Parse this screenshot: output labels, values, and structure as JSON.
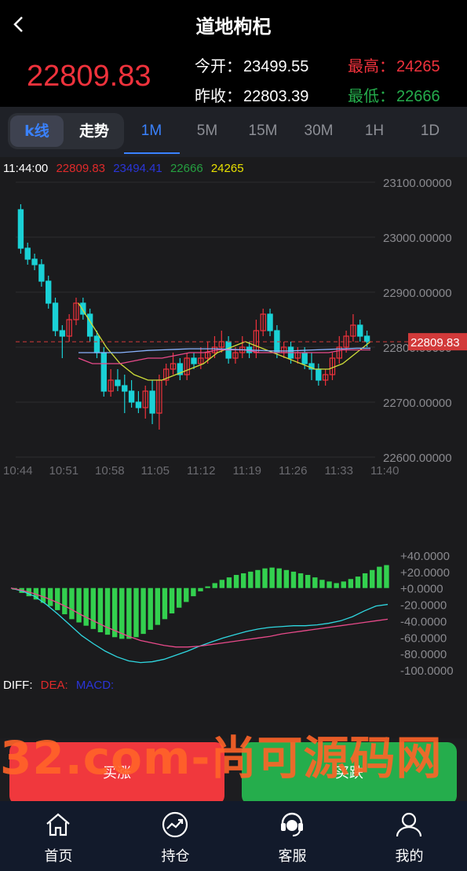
{
  "header": {
    "title": "道地枸杞",
    "price": "22809.83",
    "open_label": "今开：",
    "open_value": "23499.55",
    "prev_label": "昨收：",
    "prev_value": "22803.39",
    "high_label": "最高：",
    "high_value": "24265",
    "low_label": "最低：",
    "low_value": "22666"
  },
  "tabs": {
    "kline": "k线",
    "trend": "走势",
    "periods": [
      "1M",
      "5M",
      "15M",
      "30M",
      "1H",
      "1D"
    ],
    "active_period": "1M"
  },
  "legend": {
    "time": "11:44:00",
    "v1": "22809.83",
    "v2": "23494.41",
    "v3": "22666",
    "v4": "24265"
  },
  "macd_legend": {
    "diff": "DIFF:",
    "dea": "DEA:",
    "macd": "MACD:"
  },
  "watermark": "32.com-尚可源码网",
  "buttons": {
    "buy_up": "买涨",
    "buy_down": "买跌"
  },
  "nav": [
    "首页",
    "持仓",
    "客服",
    "我的"
  ],
  "colors": {
    "up": "#f0323c",
    "down": "#1ad1d6",
    "accent": "#3a82ff",
    "green": "#25ad4c"
  },
  "chart_data": [
    {
      "type": "candlestick",
      "title": "",
      "y_ticks": [
        "23100.00000",
        "23000.00000",
        "22900.00000",
        "22800.00000",
        "22700.00000",
        "22600.00000"
      ],
      "ylim": [
        22600,
        23100
      ],
      "x_ticks": [
        "10:44",
        "10:51",
        "10:58",
        "11:05",
        "11:12",
        "11:19",
        "11:26",
        "11:33",
        "11:40"
      ],
      "last_price_label": "22809.83",
      "candles": [
        [
          23050,
          22980,
          23060,
          22970
        ],
        [
          22980,
          22960,
          22990,
          22950
        ],
        [
          22960,
          22950,
          22970,
          22940
        ],
        [
          22950,
          22920,
          22960,
          22910
        ],
        [
          22920,
          22880,
          22930,
          22870
        ],
        [
          22880,
          22830,
          22890,
          22820
        ],
        [
          22830,
          22820,
          22840,
          22780
        ],
        [
          22820,
          22850,
          22860,
          22810
        ],
        [
          22850,
          22880,
          22890,
          22840
        ],
        [
          22880,
          22860,
          22890,
          22850
        ],
        [
          22860,
          22820,
          22870,
          22810
        ],
        [
          22820,
          22790,
          22830,
          22780
        ],
        [
          22790,
          22720,
          22800,
          22710
        ],
        [
          22720,
          22740,
          22760,
          22710
        ],
        [
          22740,
          22730,
          22760,
          22720
        ],
        [
          22730,
          22720,
          22750,
          22680
        ],
        [
          22720,
          22700,
          22740,
          22690
        ],
        [
          22700,
          22690,
          22720,
          22680
        ],
        [
          22690,
          22720,
          22730,
          22670
        ],
        [
          22720,
          22680,
          22740,
          22660
        ],
        [
          22680,
          22740,
          22750,
          22650
        ],
        [
          22740,
          22760,
          22770,
          22730
        ],
        [
          22760,
          22770,
          22790,
          22750
        ],
        [
          22770,
          22750,
          22780,
          22740
        ],
        [
          22750,
          22780,
          22790,
          22740
        ],
        [
          22780,
          22770,
          22790,
          22760
        ],
        [
          22770,
          22780,
          22800,
          22760
        ],
        [
          22780,
          22790,
          22810,
          22770
        ],
        [
          22790,
          22800,
          22820,
          22780
        ],
        [
          22800,
          22810,
          22830,
          22790
        ],
        [
          22810,
          22780,
          22820,
          22770
        ],
        [
          22780,
          22790,
          22800,
          22770
        ],
        [
          22790,
          22800,
          22820,
          22780
        ],
        [
          22800,
          22790,
          22810,
          22780
        ],
        [
          22790,
          22830,
          22850,
          22780
        ],
        [
          22830,
          22860,
          22870,
          22820
        ],
        [
          22860,
          22830,
          22870,
          22820
        ],
        [
          22830,
          22790,
          22840,
          22780
        ],
        [
          22790,
          22800,
          22810,
          22780
        ],
        [
          22800,
          22780,
          22810,
          22770
        ],
        [
          22780,
          22790,
          22800,
          22770
        ],
        [
          22790,
          22770,
          22800,
          22760
        ],
        [
          22770,
          22760,
          22790,
          22740
        ],
        [
          22760,
          22740,
          22770,
          22730
        ],
        [
          22740,
          22750,
          22760,
          22730
        ],
        [
          22750,
          22780,
          22790,
          22740
        ],
        [
          22780,
          22800,
          22820,
          22770
        ],
        [
          22800,
          22820,
          22830,
          22790
        ],
        [
          22820,
          22840,
          22860,
          22810
        ],
        [
          22840,
          22820,
          22850,
          22810
        ],
        [
          22820,
          22810,
          22830,
          22800
        ]
      ],
      "series": [
        {
          "color": "#cddc39",
          "values": [
            22880,
            22840,
            22800,
            22770,
            22750,
            22740,
            22740,
            22750,
            22760,
            22770,
            22790,
            22800,
            22810,
            22800,
            22790,
            22780,
            22770,
            22760,
            22760,
            22770,
            22790,
            22810
          ]
        },
        {
          "color": "#e84a8a",
          "values": [
            22780,
            22770,
            22770,
            22770,
            22775,
            22780,
            22780,
            22785,
            22790,
            22790,
            22795,
            22795,
            22795,
            22790,
            22790,
            22790,
            22790,
            22790,
            22790,
            22795,
            22795,
            22795
          ]
        },
        {
          "color": "#8ab4ff",
          "values": [
            22790,
            22790,
            22790,
            22790,
            22792,
            22794,
            22795,
            22796,
            22797,
            22797,
            22797,
            22796,
            22795,
            22794,
            22793,
            22793,
            22794,
            22795,
            22796,
            22797,
            22798,
            22798
          ]
        }
      ]
    },
    {
      "type": "bar",
      "title": "MACD",
      "y_ticks": [
        "+40.0000",
        "+20.0000",
        "+0.0000",
        "-20.0000",
        "-40.0000",
        "-60.0000",
        "-80.0000",
        "-100.0000"
      ],
      "ylim": [
        -100,
        40
      ],
      "values": [
        -2,
        -6,
        -10,
        -14,
        -18,
        -22,
        -27,
        -32,
        -38,
        -42,
        -46,
        -50,
        -54,
        -57,
        -60,
        -62,
        -62,
        -60,
        -56,
        -51,
        -45,
        -38,
        -31,
        -24,
        -17,
        -10,
        -4,
        2,
        6,
        10,
        13,
        16,
        18,
        20,
        22,
        24,
        25,
        24,
        22,
        20,
        18,
        16,
        13,
        10,
        8,
        6,
        8,
        11,
        14,
        18,
        22,
        26,
        28
      ],
      "diff": [
        0,
        -4,
        -10,
        -20,
        -32,
        -45,
        -58,
        -68,
        -77,
        -84,
        -89,
        -91,
        -90,
        -87,
        -82,
        -77,
        -71,
        -66,
        -61,
        -57,
        -53,
        -50,
        -48,
        -47,
        -46,
        -46,
        -45,
        -43,
        -40,
        -35,
        -28,
        -22,
        -20
      ],
      "dea": [
        0,
        -3,
        -7,
        -12,
        -18,
        -25,
        -33,
        -40,
        -47,
        -53,
        -59,
        -64,
        -67,
        -70,
        -72,
        -72,
        -71,
        -69,
        -67,
        -65,
        -63,
        -61,
        -59,
        -56,
        -54,
        -52,
        -50,
        -48,
        -46,
        -44,
        -42,
        -40,
        -38
      ]
    }
  ]
}
